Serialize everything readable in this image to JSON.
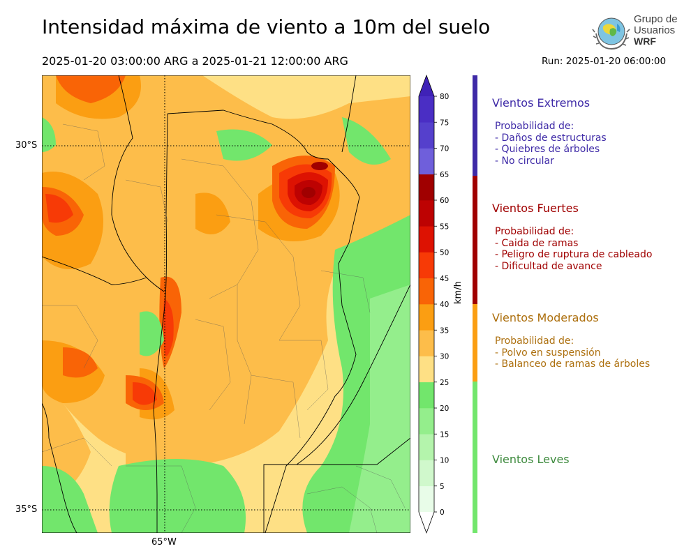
{
  "header": {
    "title": "Intensidad máxima de viento a 10m del suelo",
    "period": "2025-01-20 03:00:00 ARG  a  2025-01-21 12:00:00 ARG",
    "run": "Run: 2025-01-20 06:00:00"
  },
  "logo": {
    "line1": "Grupo de",
    "line2": "Usuarios",
    "line3": "WRF"
  },
  "map": {
    "lat_labels": [
      "30°S",
      "35°S"
    ],
    "lon_label": "65°W"
  },
  "colorbar": {
    "unit": "km/h",
    "ticks": [
      "0",
      "5",
      "10",
      "15",
      "20",
      "25",
      "30",
      "35",
      "40",
      "45",
      "50",
      "55",
      "60",
      "65",
      "70",
      "75",
      "80"
    ],
    "colors": [
      "#e8fce8",
      "#d0f8cc",
      "#b4f4ac",
      "#94ee8c",
      "#72e66c",
      "#fee085",
      "#fdbd4a",
      "#fb9e12",
      "#f96406",
      "#f73a06",
      "#dd1202",
      "#bd0202",
      "#a00000",
      "#6f5fdb",
      "#5540cc",
      "#4a2ec4"
    ],
    "extend_max_color": "#3f22b7",
    "extend_min_color": "#ffffff"
  },
  "categories": [
    {
      "name": "Vientos Extremos",
      "color": "#3e2aa7",
      "intro": "Probabilidad de:",
      "items": [
        "- Daños de estructuras",
        "- Quiebres de árboles",
        "- No circular"
      ]
    },
    {
      "name": "Vientos Fuertes",
      "color": "#a00000",
      "intro": "Probabilidad de:",
      "items": [
        "- Caida de ramas",
        "- Peligro de ruptura de cableado",
        "- Dificultad de avance"
      ]
    },
    {
      "name": "Vientos Moderados",
      "color": "#ad700f",
      "intro": "Probabilidad de:",
      "items": [
        "- Polvo en suspensión",
        "- Balanceo de ramas de árboles"
      ]
    },
    {
      "name": "Vientos Leves",
      "color": "#3d8a3d",
      "intro": "",
      "items": []
    }
  ]
}
